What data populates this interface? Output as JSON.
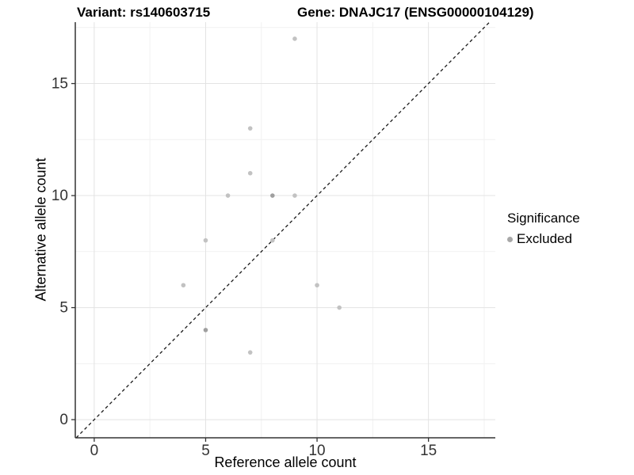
{
  "header": {
    "variant_title": "Variant: rs140603715",
    "gene_title": "Gene: DNAJC17 (ENSG00000104129)"
  },
  "chart_data": {
    "type": "scatter",
    "title_left": "Variant: rs140603715",
    "title_right": "Gene: DNAJC17 (ENSG00000104129)",
    "xlabel": "Reference allele count",
    "ylabel": "Alternative allele count",
    "xlim": [
      -0.85,
      18.0
    ],
    "ylim": [
      -0.81,
      17.74
    ],
    "x_ticks": [
      0,
      5,
      10,
      15
    ],
    "y_ticks": [
      0,
      5,
      10,
      15
    ],
    "x_minor_ticks": [
      2.5,
      7.5,
      12.5,
      17.5
    ],
    "y_minor_ticks": [
      2.5,
      7.5,
      12.5,
      17.5
    ],
    "grid": "major+minor",
    "identity_line": {
      "type": "y=x",
      "style": "dashed",
      "color": "#1a1a1a"
    },
    "series": [
      {
        "name": "Excluded",
        "points": [
          {
            "x": 9,
            "y": 17
          },
          {
            "x": 7,
            "y": 13
          },
          {
            "x": 7,
            "y": 11
          },
          {
            "x": 6,
            "y": 10
          },
          {
            "x": 8,
            "y": 10,
            "overlap_darker": true
          },
          {
            "x": 9,
            "y": 10
          },
          {
            "x": 5,
            "y": 8
          },
          {
            "x": 8,
            "y": 8
          },
          {
            "x": 4,
            "y": 6
          },
          {
            "x": 10,
            "y": 6
          },
          {
            "x": 11,
            "y": 5
          },
          {
            "x": 5,
            "y": 4,
            "overlap_darker": true
          },
          {
            "x": 7,
            "y": 3
          }
        ]
      }
    ],
    "legend": {
      "title": "Significance",
      "position": "right",
      "items": [
        {
          "label": "Excluded",
          "color": "#a8a8a8"
        }
      ]
    },
    "colors": {
      "point": "#c2c2c2",
      "point_dark": "#9f9f9f",
      "grid_major": "#e3e3e3",
      "grid_minor": "#f1f1f1",
      "axis_line": "#333333",
      "tick_text": "#333333"
    }
  }
}
